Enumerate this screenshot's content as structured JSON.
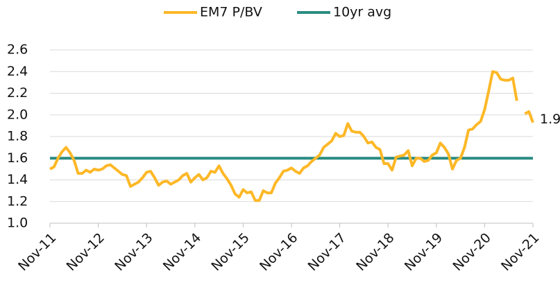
{
  "chart_data": {
    "type": "line",
    "categories": [
      "Nov-11",
      null,
      null,
      null,
      null,
      null,
      null,
      null,
      null,
      null,
      null,
      null,
      "Nov-12",
      null,
      null,
      null,
      null,
      null,
      null,
      null,
      null,
      null,
      null,
      null,
      "Nov-13",
      null,
      null,
      null,
      null,
      null,
      null,
      null,
      null,
      null,
      null,
      null,
      "Nov-14",
      null,
      null,
      null,
      null,
      null,
      null,
      null,
      null,
      null,
      null,
      null,
      "Nov-15",
      null,
      null,
      null,
      null,
      null,
      null,
      null,
      null,
      null,
      null,
      null,
      "Nov-16",
      null,
      null,
      null,
      null,
      null,
      null,
      null,
      null,
      null,
      null,
      null,
      "Nov-17",
      null,
      null,
      null,
      null,
      null,
      null,
      null,
      null,
      null,
      null,
      null,
      "Nov-18",
      null,
      null,
      null,
      null,
      null,
      null,
      null,
      null,
      null,
      null,
      null,
      "Nov-19",
      null,
      null,
      null,
      null,
      null,
      null,
      null,
      null,
      null,
      null,
      null,
      "Nov-20",
      null,
      null,
      null,
      null,
      null,
      null,
      null,
      null,
      null,
      null,
      null,
      "Nov-21"
    ],
    "series": [
      {
        "name": "EM7 P/BV",
        "color": "#fdb827",
        "values": [
          1.5,
          1.52,
          1.6,
          1.66,
          1.7,
          1.65,
          1.58,
          1.46,
          1.46,
          1.49,
          1.47,
          1.5,
          1.49,
          1.5,
          1.53,
          1.54,
          1.51,
          1.48,
          1.45,
          1.44,
          1.34,
          1.36,
          1.38,
          1.42,
          1.47,
          1.48,
          1.42,
          1.35,
          1.38,
          1.39,
          1.36,
          1.38,
          1.4,
          1.44,
          1.46,
          1.38,
          1.42,
          1.45,
          1.4,
          1.42,
          1.48,
          1.47,
          1.53,
          1.46,
          1.41,
          1.35,
          1.27,
          1.24,
          1.31,
          1.28,
          1.29,
          1.21,
          1.21,
          1.3,
          1.28,
          1.28,
          1.37,
          1.42,
          1.48,
          1.49,
          1.51,
          1.48,
          1.46,
          1.51,
          1.53,
          1.57,
          1.6,
          1.63,
          1.7,
          1.73,
          1.76,
          1.83,
          1.8,
          1.81,
          1.92,
          1.85,
          1.84,
          1.84,
          1.8,
          1.74,
          1.75,
          1.7,
          1.68,
          1.55,
          1.55,
          1.49,
          1.61,
          1.62,
          1.63,
          1.67,
          1.53,
          1.6,
          1.6,
          1.57,
          1.58,
          1.63,
          1.65,
          1.74,
          1.7,
          1.64,
          1.5,
          1.58,
          1.6,
          1.7,
          1.86,
          1.87,
          1.91,
          1.94,
          2.05,
          2.22,
          2.4,
          2.39,
          2.33,
          2.32,
          2.32,
          2.34,
          2.13,
          null,
          2.01,
          2.03,
          1.93
        ],
        "value_labels": [
          null,
          null,
          null,
          null,
          null,
          null,
          null,
          null,
          null,
          null,
          null,
          null,
          null,
          null,
          null,
          null,
          null,
          null,
          null,
          null,
          null,
          null,
          null,
          null,
          null,
          null,
          null,
          null,
          null,
          null,
          null,
          null,
          null,
          null,
          null,
          null,
          null,
          null,
          null,
          null,
          null,
          null,
          null,
          null,
          null,
          null,
          null,
          null,
          null,
          null,
          null,
          null,
          null,
          null,
          null,
          null,
          null,
          null,
          null,
          null,
          null,
          null,
          null,
          null,
          null,
          null,
          null,
          null,
          null,
          null,
          null,
          null,
          null,
          null,
          null,
          null,
          null,
          null,
          null,
          null,
          null,
          null,
          null,
          null,
          null,
          null,
          null,
          null,
          null,
          null,
          null,
          null,
          null,
          null,
          null,
          null,
          null,
          null,
          null,
          null,
          null,
          null,
          null,
          null,
          null,
          null,
          null,
          null,
          null,
          null,
          null,
          null,
          null,
          null,
          null,
          null,
          null,
          null,
          null,
          null,
          "1.9"
        ]
      },
      {
        "name": "10yr avg",
        "color": "#2a8c82",
        "values": [
          1.6,
          1.6,
          1.6,
          1.6,
          1.6,
          1.6,
          1.6,
          1.6,
          1.6,
          1.6,
          1.6,
          1.6,
          1.6,
          1.6,
          1.6,
          1.6,
          1.6,
          1.6,
          1.6,
          1.6,
          1.6,
          1.6,
          1.6,
          1.6,
          1.6,
          1.6,
          1.6,
          1.6,
          1.6,
          1.6,
          1.6,
          1.6,
          1.6,
          1.6,
          1.6,
          1.6,
          1.6,
          1.6,
          1.6,
          1.6,
          1.6,
          1.6,
          1.6,
          1.6,
          1.6,
          1.6,
          1.6,
          1.6,
          1.6,
          1.6,
          1.6,
          1.6,
          1.6,
          1.6,
          1.6,
          1.6,
          1.6,
          1.6,
          1.6,
          1.6,
          1.6,
          1.6,
          1.6,
          1.6,
          1.6,
          1.6,
          1.6,
          1.6,
          1.6,
          1.6,
          1.6,
          1.6,
          1.6,
          1.6,
          1.6,
          1.6,
          1.6,
          1.6,
          1.6,
          1.6,
          1.6,
          1.6,
          1.6,
          1.6,
          1.6,
          1.6,
          1.6,
          1.6,
          1.6,
          1.6,
          1.6,
          1.6,
          1.6,
          1.6,
          1.6,
          1.6,
          1.6,
          1.6,
          1.6,
          1.6,
          1.6,
          1.6,
          1.6,
          1.6,
          1.6,
          1.6,
          1.6,
          1.6,
          1.6,
          1.6,
          1.6,
          1.6,
          1.6,
          1.6,
          1.6,
          1.6,
          1.6,
          1.6,
          1.6,
          1.6,
          1.6
        ]
      }
    ],
    "ylim": [
      1.0,
      2.6
    ],
    "yticks": [
      {
        "value": 1.0,
        "label": "1.0"
      },
      1.2,
      1.4,
      1.6,
      1.8,
      {
        "value": 2.0,
        "label": "2.0"
      },
      2.2,
      2.4,
      2.6
    ],
    "grid": true,
    "legend": "top"
  }
}
